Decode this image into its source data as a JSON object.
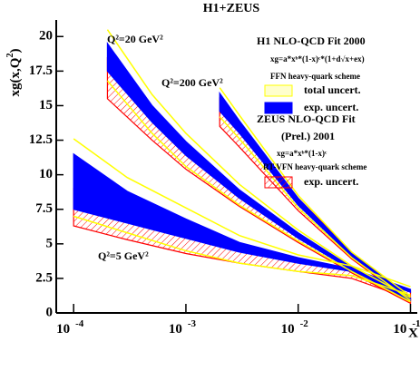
{
  "chart_data": {
    "type": "band",
    "title": "H1+ZEUS",
    "xlabel": "X",
    "ylabel": {
      "text": "xg(x,Q",
      "sup": "2",
      "tail": ")"
    },
    "log_x": true,
    "xlim": [
      7e-05,
      0.115
    ],
    "ylim": [
      0,
      21.2
    ],
    "xticks": [
      {
        "value": 0.0001,
        "label": "10",
        "exponent": "-4"
      },
      {
        "value": 0.001,
        "label": "10",
        "exponent": "-3"
      },
      {
        "value": 0.01,
        "label": "10",
        "exponent": "-2"
      },
      {
        "value": 0.1,
        "label": "10",
        "exponent": "-1"
      }
    ],
    "yticks": [
      0,
      2.5,
      5,
      7.5,
      10,
      12.5,
      15,
      17.5,
      20
    ],
    "annotations": [
      "Q²=20 GeV²",
      "Q²=200 GeV²",
      "Q²=5 GeV²"
    ],
    "legend": {
      "h1": {
        "title": "H1 NLO-QCD Fit 2000",
        "formula": "xg=a*xᵇ*(1-x)ᶜ*(1+d√x+ex)",
        "scheme": "FFN heavy-quark scheme"
      },
      "zeus": {
        "title": "ZEUS NLO-QCD Fit",
        "subtitle": "(Prel.) 2001",
        "formula": "xg=a*xᵇ*(1-x)ᶜ",
        "scheme": "RT-VFN heavy-quark scheme"
      }
    },
    "series": [
      {
        "name": "exp. uncert.",
        "color": "#ff0000",
        "style": "hatch",
        "legend_group": "zeus",
        "bands": [
          {
            "x": [
              0.0001,
              0.0003,
              0.001,
              0.003,
              0.01,
              0.03,
              0.1
            ],
            "lower": [
              6.3,
              5.3,
              4.3,
              3.6,
              3.0,
              2.5,
              1.0
            ],
            "upper": [
              9.0,
              7.3,
              5.8,
              4.6,
              3.8,
              3.1,
              1.6
            ]
          },
          {
            "x": [
              0.0002,
              0.0005,
              0.001,
              0.003,
              0.01,
              0.03,
              0.1
            ],
            "lower": [
              15.5,
              12.5,
              10.4,
              7.7,
              5.1,
              2.9,
              0.7
            ],
            "upper": [
              18.4,
              14.4,
              12.0,
              8.7,
              5.7,
              3.3,
              1.0
            ]
          },
          {
            "x": [
              0.002,
              0.003,
              0.01,
              0.03,
              0.1
            ],
            "lower": [
              13.5,
              12.0,
              7.4,
              3.9,
              0.8
            ],
            "upper": [
              15.5,
              13.6,
              8.3,
              4.4,
              1.1
            ]
          }
        ]
      },
      {
        "name": "exp. uncert.",
        "color": "#0000ff",
        "style": "fill",
        "legend_group": "h1",
        "bands": [
          {
            "x": [
              0.0001,
              0.0003,
              0.001,
              0.003,
              0.01,
              0.03,
              0.1
            ],
            "lower": [
              7.5,
              6.5,
              5.4,
              4.4,
              3.6,
              3.0,
              1.5
            ],
            "upper": [
              11.5,
              8.8,
              6.8,
              5.1,
              4.0,
              3.2,
              1.7
            ]
          },
          {
            "x": [
              0.0002,
              0.0005,
              0.001,
              0.003,
              0.01,
              0.03,
              0.1
            ],
            "lower": [
              17.5,
              13.8,
              11.4,
              8.3,
              5.4,
              3.1,
              0.9
            ],
            "upper": [
              19.5,
              15.0,
              12.4,
              8.9,
              5.8,
              3.3,
              1.0
            ]
          },
          {
            "x": [
              0.002,
              0.003,
              0.01,
              0.03,
              0.1
            ],
            "lower": [
              14.6,
              13.0,
              7.8,
              4.1,
              1.0
            ],
            "upper": [
              15.9,
              13.9,
              8.3,
              4.3,
              1.1
            ]
          }
        ]
      },
      {
        "name": "total uncert.",
        "color": "#ffff00",
        "style": "outline",
        "legend_group": "h1",
        "bands": [
          {
            "x": [
              0.0001,
              0.0003,
              0.001,
              0.003,
              0.01,
              0.03,
              0.1
            ],
            "lower": [
              7.0,
              5.8,
              4.5,
              3.6,
              3.0,
              2.7,
              1.3
            ],
            "upper": [
              12.6,
              9.8,
              7.6,
              5.6,
              4.2,
              3.4,
              1.9
            ]
          },
          {
            "x": [
              0.0002,
              0.0005,
              0.001,
              0.003,
              0.01,
              0.03,
              0.1
            ],
            "lower": [
              16.8,
              13.0,
              10.6,
              7.8,
              5.2,
              3.0,
              0.8
            ],
            "upper": [
              20.5,
              15.8,
              13.0,
              9.3,
              6.0,
              3.4,
              1.1
            ]
          },
          {
            "x": [
              0.002,
              0.003,
              0.01,
              0.03,
              0.1
            ],
            "lower": [
              14.2,
              12.6,
              7.6,
              4.0,
              0.9
            ],
            "upper": [
              16.3,
              14.3,
              8.5,
              4.4,
              1.2
            ]
          }
        ]
      }
    ]
  }
}
